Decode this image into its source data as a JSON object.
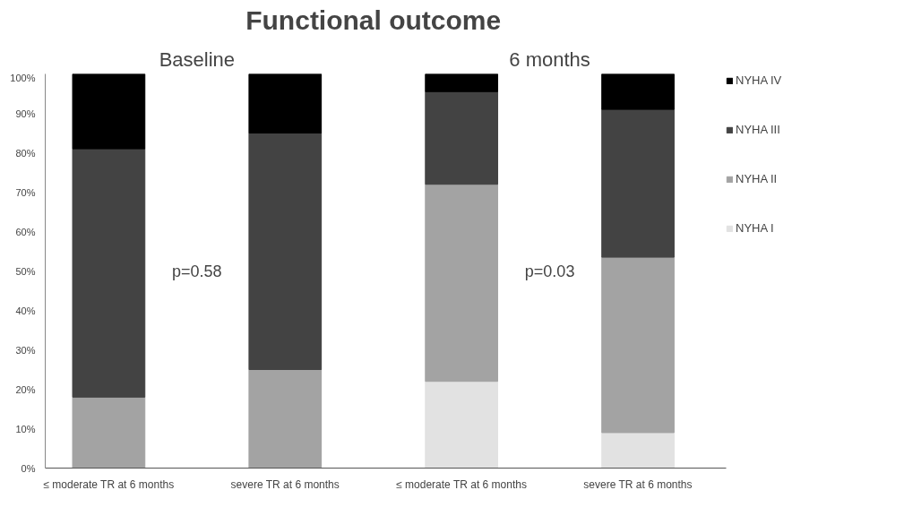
{
  "chart_data": {
    "type": "bar",
    "title": "Functional outcome",
    "stacked": true,
    "categories": [
      "≤ moderate TR at 6 months",
      "severe TR at 6 months",
      "≤ moderate TR at 6 months",
      "severe TR at 6 months"
    ],
    "series": [
      {
        "name": "NYHA I",
        "color": "#e2e2e2",
        "values": [
          0,
          0,
          22,
          9
        ]
      },
      {
        "name": "NYHA II",
        "color": "#a3a3a3",
        "values": [
          18,
          25,
          50,
          44.5
        ]
      },
      {
        "name": "NYHA III",
        "color": "#434343",
        "values": [
          63,
          60,
          23.5,
          37.5
        ]
      },
      {
        "name": "NYHA IV",
        "color": "#000000",
        "values": [
          19,
          15,
          4.5,
          9
        ]
      }
    ],
    "ylim": [
      0,
      100
    ],
    "yticks": [
      {
        "value": 0,
        "label": "0%"
      },
      {
        "value": 10,
        "label": "10%"
      },
      {
        "value": 20,
        "label": "20%"
      },
      {
        "value": 30,
        "label": "30%"
      },
      {
        "value": 40,
        "label": "40%"
      },
      {
        "value": 50,
        "label": "50%"
      },
      {
        "value": 60,
        "label": "60%"
      },
      {
        "value": 70,
        "label": "70%"
      },
      {
        "value": 80,
        "label": "80%"
      },
      {
        "value": 90,
        "label": "90%"
      },
      {
        "value": 100,
        "label": "100%"
      }
    ],
    "annotations": [
      "Baseline",
      "6 months",
      "p=0.58",
      "p=0.03"
    ],
    "grid": false,
    "legend": "right"
  }
}
